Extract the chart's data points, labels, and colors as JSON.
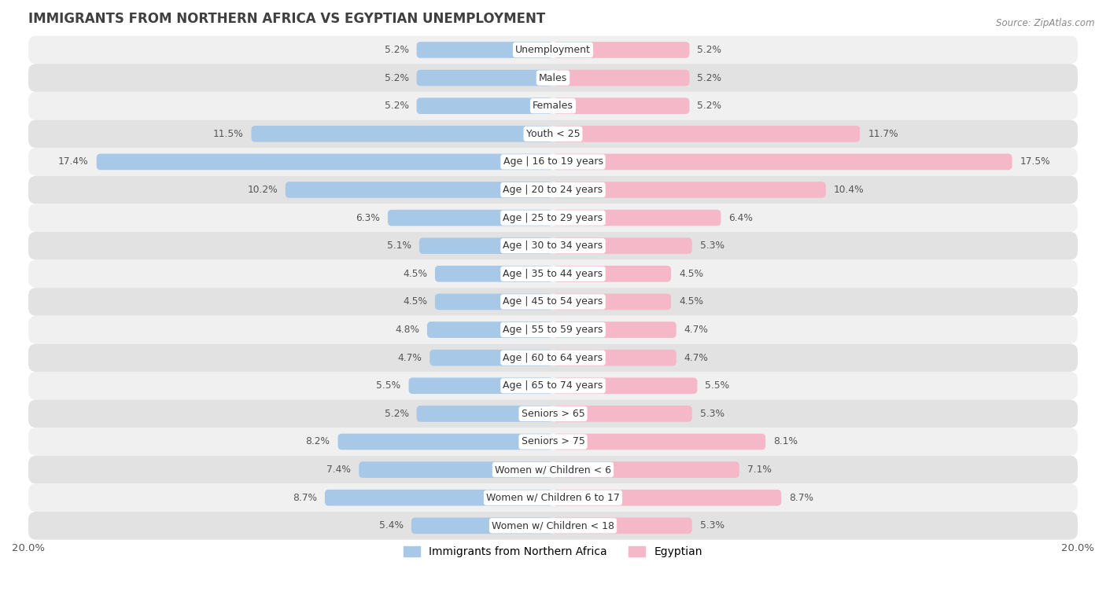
{
  "title": "IMMIGRANTS FROM NORTHERN AFRICA VS EGYPTIAN UNEMPLOYMENT",
  "source": "Source: ZipAtlas.com",
  "categories": [
    "Unemployment",
    "Males",
    "Females",
    "Youth < 25",
    "Age | 16 to 19 years",
    "Age | 20 to 24 years",
    "Age | 25 to 29 years",
    "Age | 30 to 34 years",
    "Age | 35 to 44 years",
    "Age | 45 to 54 years",
    "Age | 55 to 59 years",
    "Age | 60 to 64 years",
    "Age | 65 to 74 years",
    "Seniors > 65",
    "Seniors > 75",
    "Women w/ Children < 6",
    "Women w/ Children 6 to 17",
    "Women w/ Children < 18"
  ],
  "left_values": [
    5.2,
    5.2,
    5.2,
    11.5,
    17.4,
    10.2,
    6.3,
    5.1,
    4.5,
    4.5,
    4.8,
    4.7,
    5.5,
    5.2,
    8.2,
    7.4,
    8.7,
    5.4
  ],
  "right_values": [
    5.2,
    5.2,
    5.2,
    11.7,
    17.5,
    10.4,
    6.4,
    5.3,
    4.5,
    4.5,
    4.7,
    4.7,
    5.5,
    5.3,
    8.1,
    7.1,
    8.7,
    5.3
  ],
  "left_color": "#a8c8e8",
  "right_color": "#f4b8c8",
  "bar_height": 0.58,
  "xlim": 20.0,
  "row_bg_light": "#f0f0f0",
  "row_bg_dark": "#e2e2e2",
  "label_fontsize": 9.0,
  "value_fontsize": 8.8,
  "title_fontsize": 12,
  "legend_fontsize": 10,
  "title_color": "#404040",
  "value_color": "#555555"
}
